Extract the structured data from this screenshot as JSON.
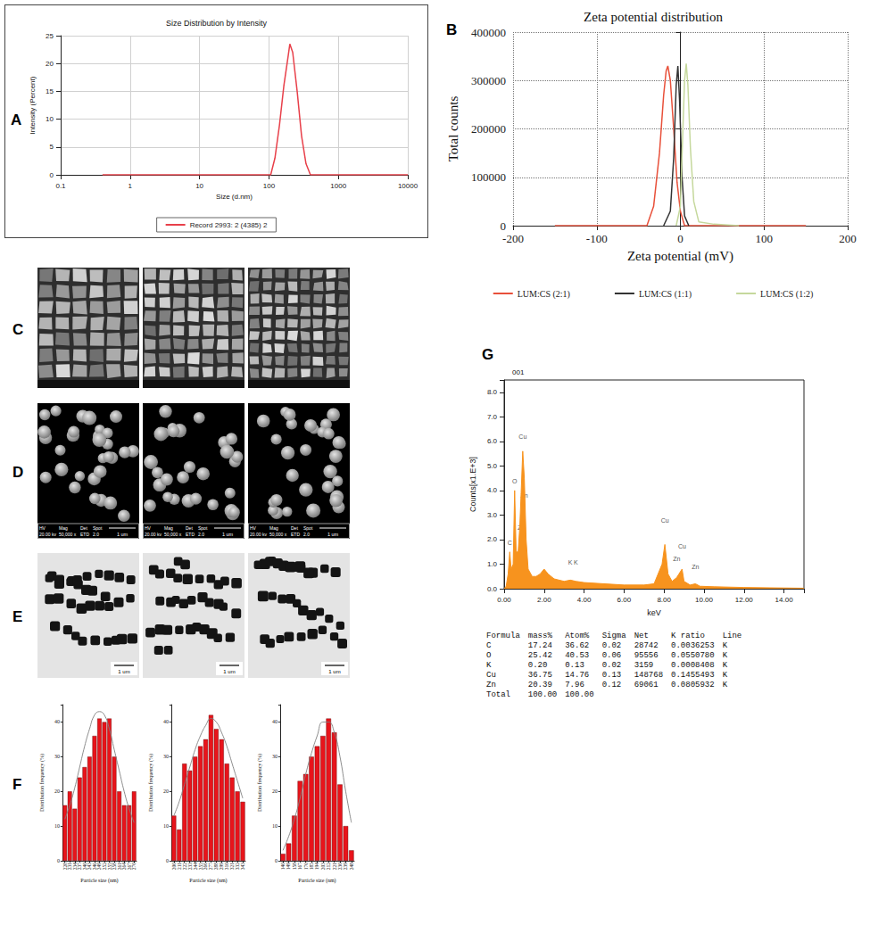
{
  "panel_labels": [
    "A",
    "B",
    "C",
    "D",
    "E",
    "F",
    "G"
  ],
  "chart_data": [
    {
      "type": "line",
      "title": "Size Distribution by Intensity",
      "x_label": "Size (d.nm)",
      "y_label": "Intensity (Percent)",
      "log": "x",
      "xlim": [
        0.1,
        10000
      ],
      "xticks": [
        0.1,
        1,
        10,
        100,
        1000,
        10000
      ],
      "ylim": [
        0,
        25
      ],
      "yticks": [
        0,
        5,
        10,
        15,
        20,
        25
      ],
      "grid": true,
      "legend": "bottom",
      "x": [
        0.4,
        1,
        10,
        100,
        106,
        122,
        142,
        164,
        190,
        200,
        220,
        255,
        295,
        342,
        396,
        1000,
        10000
      ],
      "series": [
        {
          "name": "Record 2993: 2 (4385) 2",
          "color": "#e8404a",
          "values": [
            0,
            0,
            0,
            0,
            0,
            3,
            9,
            16,
            21.5,
            23.5,
            22,
            15,
            7,
            2,
            0,
            0,
            0
          ]
        }
      ]
    },
    {
      "type": "line",
      "title": "Zeta potential distribution",
      "x_label": "Zeta potential (mV)",
      "y_label": "Total counts",
      "xlim": [
        -200,
        200
      ],
      "xticks": [
        -200,
        -100,
        0,
        100,
        200
      ],
      "ylim": [
        0,
        400000
      ],
      "yticks": [
        0,
        100000,
        200000,
        300000,
        400000
      ],
      "grid": true,
      "legend": "bottom",
      "series": [
        {
          "name": "LUM:CS (2:1)",
          "color": "#e8503a",
          "x": [
            -150,
            -40,
            -32,
            -25,
            -20,
            -17,
            -15,
            -12,
            -8,
            -4,
            0,
            5,
            150
          ],
          "values": [
            0,
            0,
            40000,
            150000,
            270000,
            320000,
            330000,
            300000,
            200000,
            90000,
            30000,
            0,
            0
          ]
        },
        {
          "name": "LUM:CS (1:1)",
          "color": "#333333",
          "x": [
            -20,
            -12,
            -8,
            -5,
            -3,
            -1,
            2,
            5,
            10
          ],
          "values": [
            0,
            30000,
            140000,
            290000,
            330000,
            260000,
            100000,
            20000,
            0
          ]
        },
        {
          "name": "LUM:CS (1:2)",
          "color": "#c5d89c",
          "x": [
            -5,
            0,
            3,
            5,
            7,
            9,
            12,
            16,
            22,
            40,
            70
          ],
          "values": [
            0,
            40000,
            200000,
            300000,
            335000,
            290000,
            160000,
            50000,
            8000,
            3000,
            0
          ]
        }
      ]
    },
    {
      "type": "bar",
      "x_label": "Particle size (nm)",
      "y_label": "Distribution frequency (%)",
      "categories": [
        "228",
        "231",
        "234",
        "237",
        "240",
        "243",
        "246",
        "249",
        "252",
        "255",
        "258",
        "261",
        "264",
        "267",
        "270"
      ],
      "ylim": [
        0,
        45
      ],
      "yticks": [
        0,
        10,
        20,
        30,
        40
      ],
      "series": [
        {
          "type": "bar",
          "color": "#e8141b",
          "values": [
            16,
            20,
            15,
            24,
            27,
            30,
            36,
            41,
            40,
            41,
            30,
            20,
            16,
            16,
            20
          ]
        },
        {
          "type": "line",
          "color": "#808080",
          "values": [
            12,
            16,
            21,
            27,
            33,
            38,
            42,
            43,
            42,
            38,
            32,
            26,
            20,
            15,
            11
          ]
        }
      ]
    },
    {
      "type": "bar",
      "x_label": "Particle size (nm)",
      "y_label": "Distribution frequency (%)",
      "categories": [
        "200",
        "211",
        "222",
        "233",
        "244",
        "255",
        "266",
        "277",
        "288",
        "299",
        "310",
        "321",
        "332",
        "343"
      ],
      "ylim": [
        0,
        45
      ],
      "yticks": [
        0,
        10,
        20,
        30,
        40
      ],
      "series": [
        {
          "type": "bar",
          "color": "#e8141b",
          "values": [
            13,
            9,
            28,
            26,
            30,
            33,
            35,
            42,
            38,
            35,
            28,
            24,
            20,
            17
          ]
        },
        {
          "type": "line",
          "color": "#808080",
          "values": [
            13,
            17,
            22,
            27,
            32,
            36,
            39,
            41,
            40,
            37,
            33,
            28,
            23,
            18
          ]
        }
      ]
    },
    {
      "type": "bar",
      "x_label": "Particle size (nm)",
      "y_label": "Distribution frequency (%)",
      "categories": [
        "140",
        "149",
        "158",
        "167",
        "176",
        "185",
        "194",
        "203",
        "212",
        "221",
        "230",
        "239",
        "248"
      ],
      "ylim": [
        0,
        45
      ],
      "yticks": [
        0,
        10,
        20,
        30,
        40
      ],
      "series": [
        {
          "type": "bar",
          "color": "#e8141b",
          "values": [
            2,
            5,
            13,
            23,
            25,
            30,
            33,
            36,
            41,
            37,
            22,
            10,
            3
          ]
        },
        {
          "type": "line",
          "color": "#808080",
          "values": [
            3,
            7,
            12,
            18,
            25,
            31,
            36,
            40,
            40,
            37,
            30,
            20,
            11
          ]
        }
      ]
    },
    {
      "type": "area",
      "title": "001",
      "x_label": "keV",
      "y_label": "Counts[x1.E+3]",
      "xlim": [
        0,
        15
      ],
      "xticks": [
        {
          "value": 0,
          "label": "0.00"
        },
        {
          "value": 2,
          "label": "2.00"
        },
        {
          "value": 4,
          "label": "4.00"
        },
        {
          "value": 6,
          "label": "6.00"
        },
        {
          "value": 8,
          "label": "8.00"
        },
        {
          "value": 10,
          "label": "10.00"
        },
        {
          "value": 12,
          "label": "12.00"
        },
        {
          "value": 14,
          "label": "14.00"
        }
      ],
      "ylim": [
        0,
        8.5
      ],
      "yticks": [
        {
          "value": 0,
          "label": "0.0"
        },
        {
          "value": 1,
          "label": "1.0"
        },
        {
          "value": 2,
          "label": "2.0"
        },
        {
          "value": 3,
          "label": "3.0"
        },
        {
          "value": 4,
          "label": "4.0"
        },
        {
          "value": 5,
          "label": "5.0"
        },
        {
          "value": 6,
          "label": "6.0"
        },
        {
          "value": 7,
          "label": "7.0"
        },
        {
          "value": 8,
          "label": "8.0"
        }
      ],
      "color": "#f7931e",
      "x": [
        0,
        0.1,
        0.2,
        0.28,
        0.35,
        0.45,
        0.525,
        0.6,
        0.7,
        0.78,
        0.85,
        0.93,
        1.01,
        1.1,
        1.2,
        1.4,
        1.6,
        1.8,
        2.0,
        2.2,
        2.5,
        3.0,
        3.31,
        3.59,
        4.0,
        5.0,
        6.0,
        7.0,
        7.5,
        7.9,
        8.04,
        8.2,
        8.4,
        8.63,
        8.9,
        9.0,
        9.3,
        9.57,
        9.8,
        10.5,
        12,
        14,
        15
      ],
      "values": [
        0,
        0.1,
        0.6,
        1.5,
        0.8,
        1.0,
        4.0,
        1.5,
        1.5,
        2.5,
        3.9,
        5.6,
        4.5,
        2.0,
        0.8,
        0.5,
        0.5,
        0.6,
        0.8,
        0.6,
        0.4,
        0.3,
        0.35,
        0.3,
        0.25,
        0.2,
        0.15,
        0.15,
        0.2,
        1.0,
        1.8,
        0.6,
        0.3,
        0.45,
        0.8,
        0.3,
        0.15,
        0.2,
        0.1,
        0.08,
        0.05,
        0.03,
        0.02
      ],
      "annotations": [
        {
          "text": "C",
          "x": 0.28,
          "y": 1.7
        },
        {
          "text": "O",
          "x": 0.525,
          "y": 4.2
        },
        {
          "text": "Cu",
          "x": 0.93,
          "y": 6.0
        },
        {
          "text": "Zn",
          "x": 1.01,
          "y": 3.6
        },
        {
          "text": "Zn",
          "x": 0.85,
          "y": 2.3
        },
        {
          "text": "Cu",
          "x": 0.93,
          "y": 1.0
        },
        {
          "text": "K",
          "x": 3.31,
          "y": 0.9
        },
        {
          "text": "K",
          "x": 3.59,
          "y": 0.9
        },
        {
          "text": "Cu",
          "x": 8.04,
          "y": 2.6
        },
        {
          "text": "Zn",
          "x": 8.63,
          "y": 1.05
        },
        {
          "text": "Cu",
          "x": 8.9,
          "y": 1.55
        },
        {
          "text": "Zn",
          "x": 9.57,
          "y": 0.7
        }
      ]
    }
  ],
  "micrographs": {
    "C": {
      "count": 3
    },
    "D": {
      "count": 3,
      "info_header": [
        "HV",
        "Mag",
        "Det",
        "Spot"
      ],
      "info_values": [
        "20.00 kv",
        "50,000 x",
        "ETD",
        "2.0"
      ],
      "scale_bar": "1 um"
    },
    "E": {
      "count": 3,
      "scale_bar": "1 um"
    }
  },
  "eds_table": {
    "header": [
      "Formula",
      "mass%",
      "Atom%",
      "Sigma",
      "Net",
      "K ratio",
      "Line"
    ],
    "rows": [
      [
        "C",
        "17.24",
        "36.62",
        "0.02",
        "28742",
        "0.0036253",
        "K"
      ],
      [
        "O",
        "25.42",
        "40.53",
        "0.06",
        "95556",
        "0.0550780",
        "K"
      ],
      [
        "K",
        "0.20",
        "0.13",
        "0.02",
        "3159",
        "0.0008408",
        "K"
      ],
      [
        "Cu",
        "36.75",
        "14.76",
        "0.13",
        "148768",
        "0.1455493",
        "K"
      ],
      [
        "Zn",
        "20.39",
        "7.96",
        "0.12",
        "69061",
        "0.0805932",
        "K"
      ],
      [
        "Total",
        "100.00",
        "100.00"
      ]
    ]
  }
}
